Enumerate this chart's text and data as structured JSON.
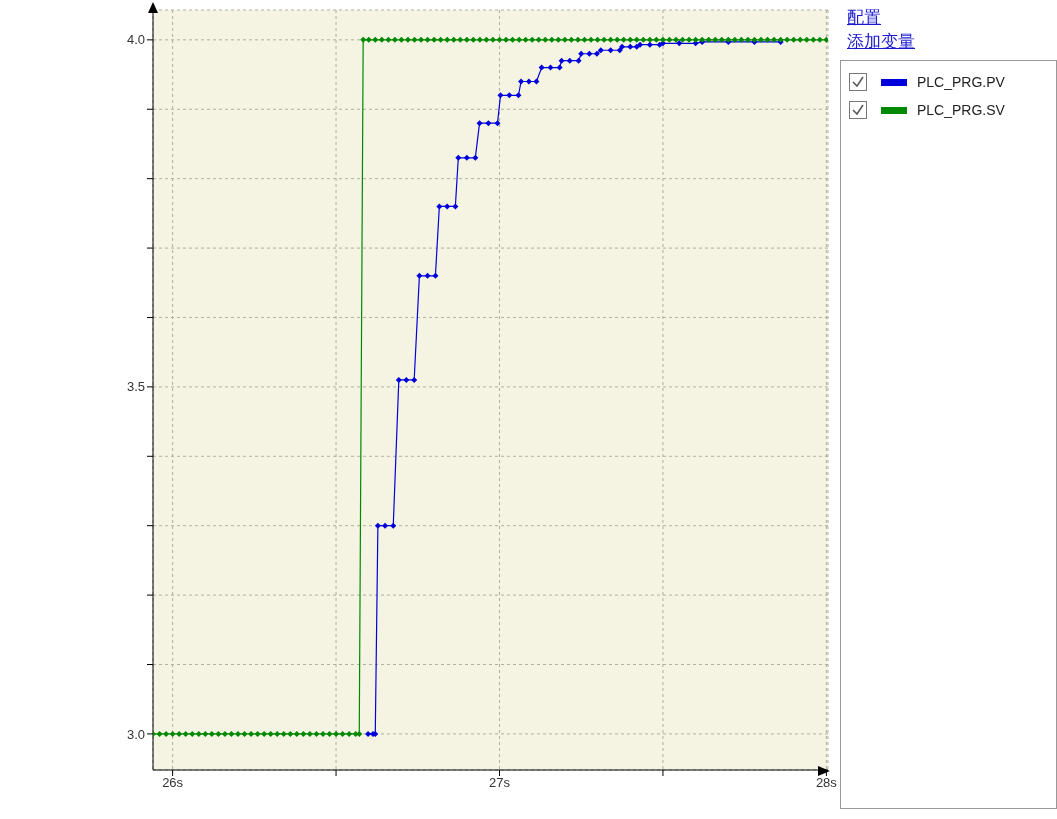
{
  "chart_data": {
    "type": "line",
    "xlim": [
      25.94,
      28.005
    ],
    "ylim": [
      2.948,
      4.043
    ],
    "xticks": [
      {
        "value": 26,
        "label": "26s"
      },
      {
        "value": 26.5,
        "label": null
      },
      {
        "value": 27,
        "label": "27s"
      },
      {
        "value": 27.5,
        "label": null
      },
      {
        "value": 28,
        "label": "28s"
      }
    ],
    "yticks": [
      {
        "value": 3,
        "label": "3.0"
      },
      {
        "value": 3.1,
        "label": null
      },
      {
        "value": 3.2,
        "label": null
      },
      {
        "value": 3.3,
        "label": null
      },
      {
        "value": 3.4,
        "label": null
      },
      {
        "value": 3.5,
        "label": "3.5"
      },
      {
        "value": 3.6,
        "label": null
      },
      {
        "value": 3.7,
        "label": null
      },
      {
        "value": 3.8,
        "label": null
      },
      {
        "value": 3.9,
        "label": null
      },
      {
        "value": 4,
        "label": "4.0"
      }
    ],
    "grid": true,
    "legend": "top right",
    "marker": "diamond",
    "annotations": [
      "配置",
      "添加变量"
    ],
    "series": [
      {
        "name": "PLC_PRG.PV",
        "color": "#0000dd",
        "x": [
          26.598,
          26.613,
          26.62,
          26.628,
          26.65,
          26.675,
          26.692,
          26.715,
          26.739,
          26.755,
          26.78,
          26.804,
          26.816,
          26.84,
          26.865,
          26.874,
          26.9,
          26.926,
          26.939,
          26.966,
          26.994,
          27.003,
          27.03,
          27.058,
          27.066,
          27.09,
          27.113,
          27.129,
          27.156,
          27.184,
          27.19,
          27.215,
          27.242,
          27.25,
          27.275,
          27.298,
          27.31,
          27.34,
          27.368,
          27.375,
          27.4,
          27.42,
          27.43,
          27.46,
          27.49,
          27.5,
          27.55,
          27.6,
          27.62,
          27.7,
          27.78,
          27.86
        ],
        "values": [
          3.0,
          3.0,
          3.0,
          3.3,
          3.3,
          3.3,
          3.51,
          3.51,
          3.51,
          3.66,
          3.66,
          3.66,
          3.76,
          3.76,
          3.76,
          3.83,
          3.83,
          3.83,
          3.88,
          3.88,
          3.88,
          3.92,
          3.92,
          3.92,
          3.94,
          3.94,
          3.94,
          3.96,
          3.96,
          3.96,
          3.97,
          3.97,
          3.97,
          3.98,
          3.98,
          3.98,
          3.985,
          3.985,
          3.985,
          3.99,
          3.99,
          3.99,
          3.993,
          3.993,
          3.993,
          3.995,
          3.995,
          3.995,
          3.997,
          3.997,
          3.997,
          3.997
        ]
      },
      {
        "name": "PLC_PRG.SV",
        "color": "#008800",
        "x": [
          25.94,
          25.96,
          25.98,
          26.0,
          26.02,
          26.04,
          26.06,
          26.08,
          26.1,
          26.12,
          26.14,
          26.16,
          26.18,
          26.2,
          26.22,
          26.24,
          26.26,
          26.28,
          26.3,
          26.32,
          26.34,
          26.36,
          26.38,
          26.4,
          26.42,
          26.44,
          26.46,
          26.48,
          26.5,
          26.52,
          26.54,
          26.56,
          26.571,
          26.583,
          26.6,
          26.62,
          26.64,
          26.66,
          26.68,
          26.7,
          26.72,
          26.74,
          26.76,
          26.78,
          26.8,
          26.82,
          26.84,
          26.86,
          26.88,
          26.9,
          26.92,
          26.94,
          26.96,
          26.98,
          27.0,
          27.02,
          27.04,
          27.06,
          27.08,
          27.1,
          27.12,
          27.14,
          27.16,
          27.18,
          27.2,
          27.22,
          27.24,
          27.26,
          27.28,
          27.3,
          27.32,
          27.34,
          27.36,
          27.38,
          27.4,
          27.42,
          27.44,
          27.46,
          27.48,
          27.5,
          27.52,
          27.54,
          27.56,
          27.58,
          27.6,
          27.62,
          27.64,
          27.66,
          27.68,
          27.7,
          27.72,
          27.74,
          27.76,
          27.78,
          27.8,
          27.82,
          27.84,
          27.86,
          27.88,
          27.9,
          27.92,
          27.94,
          27.96,
          27.98,
          28.0
        ],
        "values": [
          3,
          3,
          3,
          3,
          3,
          3,
          3,
          3,
          3,
          3,
          3,
          3,
          3,
          3,
          3,
          3,
          3,
          3,
          3,
          3,
          3,
          3,
          3,
          3,
          3,
          3,
          3,
          3,
          3,
          3,
          3,
          3,
          3,
          4,
          4,
          4,
          4,
          4,
          4,
          4,
          4,
          4,
          4,
          4,
          4,
          4,
          4,
          4,
          4,
          4,
          4,
          4,
          4,
          4,
          4,
          4,
          4,
          4,
          4,
          4,
          4,
          4,
          4,
          4,
          4,
          4,
          4,
          4,
          4,
          4,
          4,
          4,
          4,
          4,
          4,
          4,
          4,
          4,
          4,
          4,
          4,
          4,
          4,
          4,
          4,
          4,
          4,
          4,
          4,
          4,
          4,
          4,
          4,
          4,
          4,
          4,
          4,
          4,
          4,
          4,
          4,
          4,
          4,
          4,
          4
        ]
      }
    ]
  }
}
